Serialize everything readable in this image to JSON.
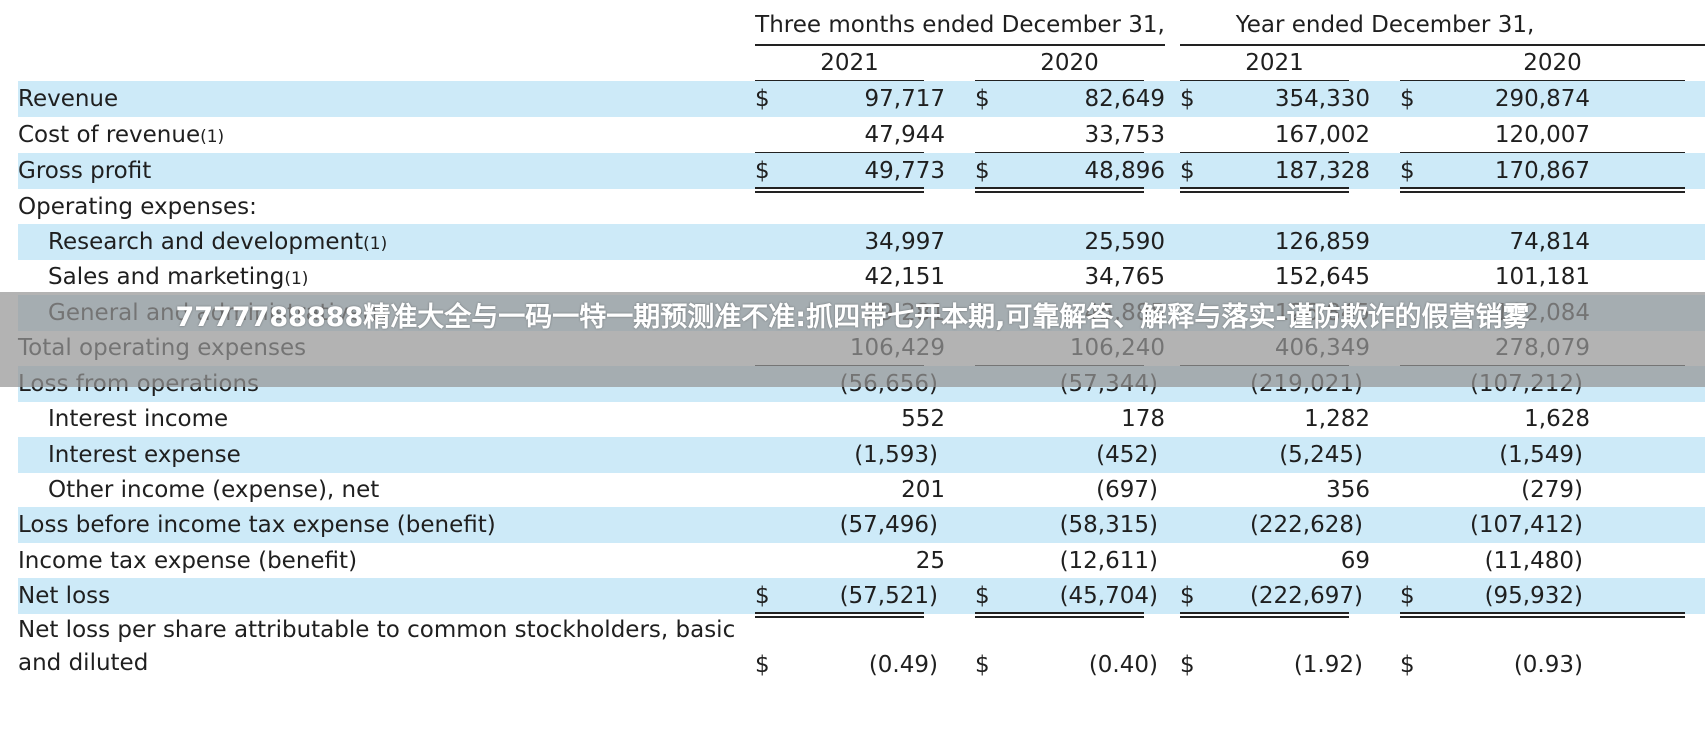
{
  "header": {
    "group_quarter": "Three months ended December 31,",
    "group_year": "Year ended December 31,",
    "years": [
      "2021",
      "2020",
      "2021",
      "2020"
    ]
  },
  "currency_symbol": "$",
  "rows": [
    {
      "label": "Revenue",
      "dollar": true,
      "values": [
        "97,717",
        "82,649",
        "354,330",
        "290,874"
      ]
    },
    {
      "label": "Cost of revenue",
      "note": "(1)",
      "values": [
        "47,944",
        "33,753",
        "167,002",
        "120,007"
      ]
    },
    {
      "label": "Gross profit",
      "dollar": true,
      "values": [
        "49,773",
        "48,896",
        "187,328",
        "170,867"
      ]
    },
    {
      "label": "Operating expenses:",
      "values": [
        "",
        "",
        "",
        ""
      ]
    },
    {
      "label": "Research and development",
      "note": "(1)",
      "values": [
        "34,997",
        "25,590",
        "126,859",
        "74,814"
      ]
    },
    {
      "label": "Sales and marketing",
      "note": "(1)",
      "values": [
        "42,151",
        "34,765",
        "152,645",
        "101,181"
      ]
    },
    {
      "label": "General and administrative",
      "note": "(1)",
      "values": [
        "29,281",
        "45,885",
        "126,845",
        "102,084"
      ]
    },
    {
      "label": "Total operating expenses",
      "values": [
        "106,429",
        "106,240",
        "406,349",
        "278,079"
      ]
    },
    {
      "label": "Loss from operations",
      "values": [
        "(56,656)",
        "(57,344)",
        "(219,021)",
        "(107,212)"
      ]
    },
    {
      "label": "Interest income",
      "values": [
        "552",
        "178",
        "1,282",
        "1,628"
      ]
    },
    {
      "label": "Interest expense",
      "values": [
        "(1,593)",
        "(452)",
        "(5,245)",
        "(1,549)"
      ]
    },
    {
      "label": "Other income (expense), net",
      "values": [
        "201",
        "(697)",
        "356",
        "(279)"
      ]
    },
    {
      "label": "Loss before income tax expense (benefit)",
      "values": [
        "(57,496)",
        "(58,315)",
        "(222,628)",
        "(107,412)"
      ]
    },
    {
      "label": "Income tax expense (benefit)",
      "values": [
        "25",
        "(12,611)",
        "69",
        "(11,480)"
      ]
    },
    {
      "label": "Net loss",
      "dollar": true,
      "values": [
        "(57,521)",
        "(45,704)",
        "(222,697)",
        "(95,932)"
      ]
    },
    {
      "label": "Net loss per share attributable to common stockholders, basic",
      "label_line2": "and diluted",
      "dollar": true,
      "values": [
        "(0.49)",
        "(0.40)",
        "(1.92)",
        "(0.93)"
      ]
    }
  ],
  "overlay_text": "7777788888精准大全与一码一特一期预测准不准:抓四带七开本期,可靠解答、解释与落实-谨防欺诈的假营销雾"
}
